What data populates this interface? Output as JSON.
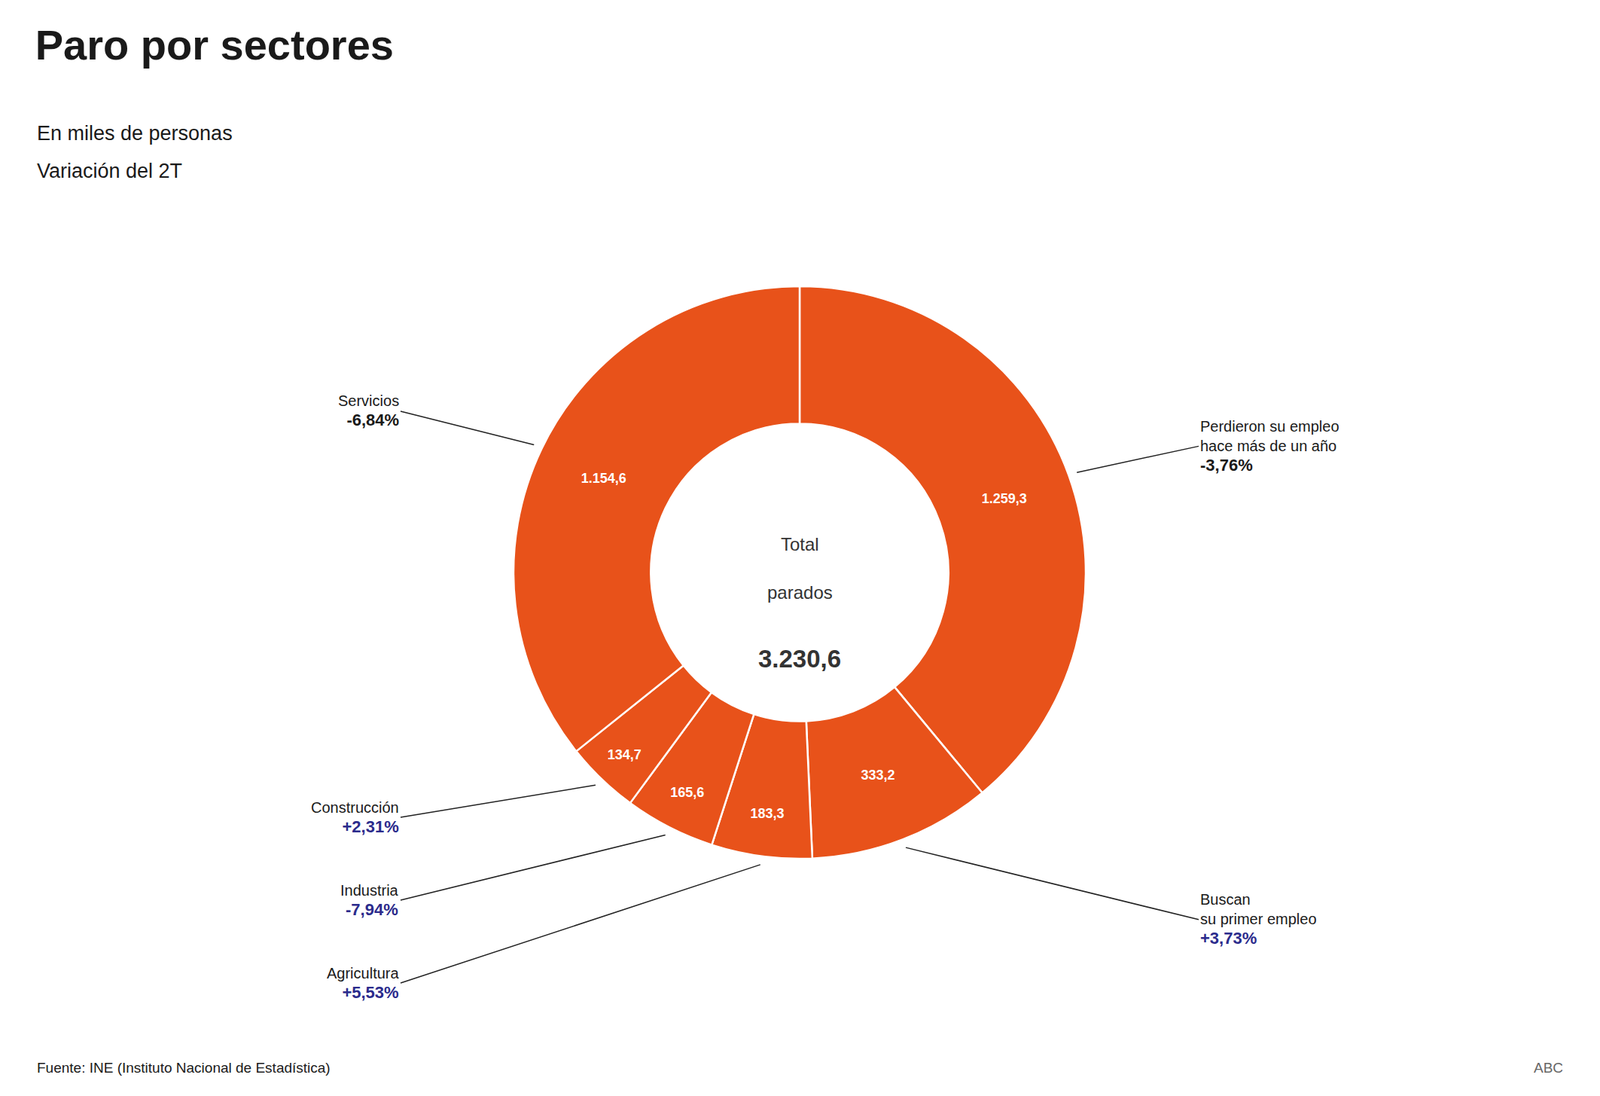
{
  "chart_data": {
    "type": "donut",
    "title": "Paro por sectores",
    "subtitle": [
      "En miles de personas",
      "Variación del 2T"
    ],
    "center_text": [
      "Total",
      "parados",
      "3.230,6"
    ],
    "categories": [
      "Perdieron su empleo\nhace más de un año",
      "Buscan\nsu primer empleo",
      "Agricultura",
      "Industria",
      "Construcción",
      "Servicios"
    ],
    "values": [
      1259.3,
      333.2,
      183.3,
      165.6,
      134.7,
      1154.6
    ],
    "value_labels": [
      "1.259,3",
      "333,2",
      "183,3",
      "165,6",
      "134,7",
      "1.154,6"
    ],
    "data_labels": true,
    "color": "#E8521A",
    "annotations": [
      {
        "text": "-3,76%",
        "color": "#1a1a1a"
      },
      {
        "text": "+3,73%",
        "color": "#2B2B8C"
      },
      {
        "text": "+5,53%",
        "color": "#2B2B8C"
      },
      {
        "text": "-7,94%",
        "color": "#2B2B8C"
      },
      {
        "text": "+2,31%",
        "color": "#2B2B8C"
      },
      {
        "text": "-6,84%",
        "color": "#1a1a1a"
      }
    ],
    "source": "Fuente: INE (Instituto Nacional de Estadística)",
    "brand": "ABC"
  }
}
